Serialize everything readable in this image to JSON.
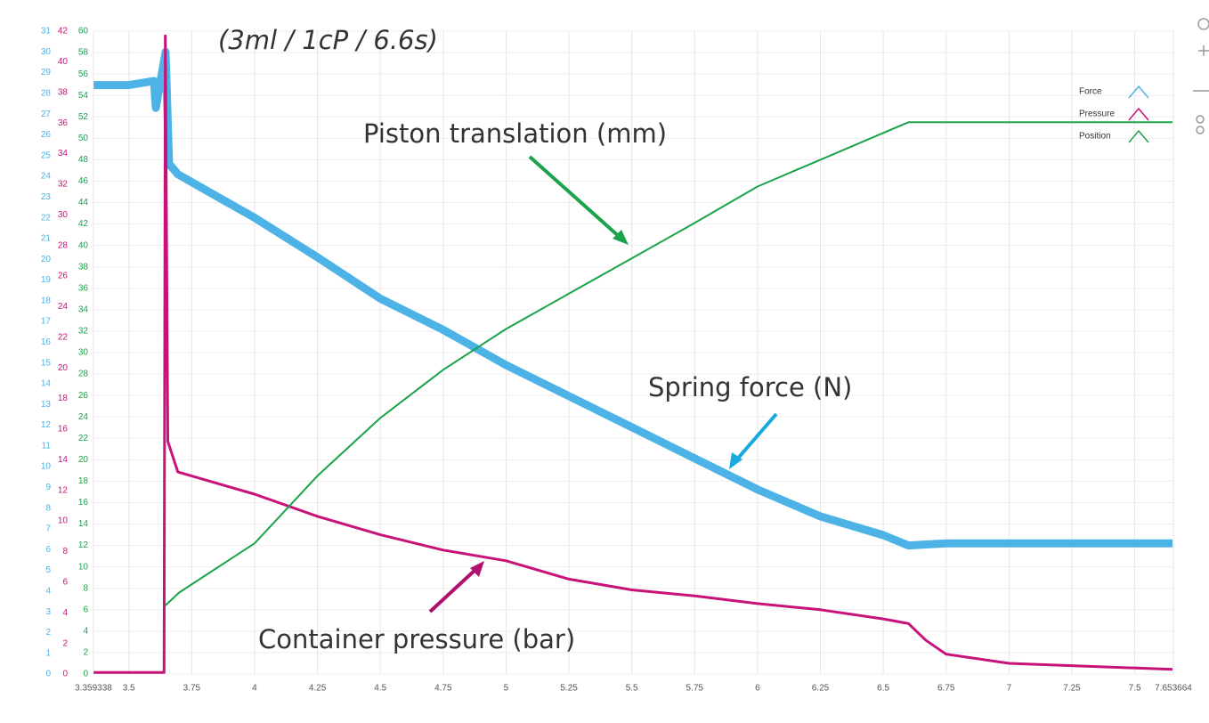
{
  "chart_data": {
    "type": "line",
    "subtitle": "(3ml / 1cP / 6.6s)",
    "annotations": [
      "Piston translation (mm)",
      "Spring force (N)",
      "Container pressure (bar)"
    ],
    "xlim": [
      3.359338,
      7.653664
    ],
    "xticks": [
      3.359338,
      3.5,
      3.75,
      4,
      4.25,
      4.5,
      4.75,
      5,
      5.25,
      5.5,
      5.75,
      6,
      6.25,
      6.5,
      6.75,
      7,
      7.25,
      7.5,
      7.653664
    ],
    "ylim": [
      0,
      31
    ],
    "yticks": [
      0,
      1,
      2,
      3,
      4,
      5,
      6,
      7,
      8,
      9,
      10,
      11,
      12,
      13,
      14,
      15,
      16,
      17,
      18,
      19,
      20,
      21,
      22,
      23,
      24,
      25,
      26,
      27,
      28,
      29,
      30,
      31
    ],
    "y2lim": [
      0,
      42
    ],
    "y2ticks": [
      0,
      2,
      4,
      6,
      8,
      10,
      12,
      14,
      16,
      18,
      20,
      22,
      24,
      26,
      28,
      30,
      32,
      34,
      36,
      38,
      40,
      42
    ],
    "y3lim": [
      0,
      60
    ],
    "y3ticks": [
      0,
      2,
      4,
      6,
      8,
      10,
      12,
      14,
      16,
      18,
      20,
      22,
      24,
      26,
      28,
      30,
      32,
      34,
      36,
      38,
      40,
      42,
      44,
      46,
      48,
      50,
      52,
      54,
      56,
      58,
      60
    ],
    "grid": true,
    "legend": "top-right",
    "series": [
      {
        "name": "Force",
        "color": "#4db3e6",
        "axis": "y",
        "x": [
          3.36,
          3.5,
          3.6,
          3.607,
          3.646,
          3.66,
          3.695,
          4,
          4.25,
          4.5,
          4.75,
          5,
          5.25,
          5.5,
          5.75,
          6,
          6.25,
          6.5,
          6.6,
          6.75,
          7.65
        ],
        "values": [
          28.4,
          28.4,
          28.6,
          27.3,
          30,
          24.6,
          24.1,
          22.0,
          20.1,
          18.1,
          16.6,
          14.9,
          13.4,
          11.9,
          10.4,
          8.9,
          7.6,
          6.7,
          6.2,
          6.3,
          6.3
        ]
      },
      {
        "name": "Pressure",
        "color": "#c8127a",
        "axis": "y2",
        "x": [
          3.36,
          3.5,
          3.64,
          3.645,
          3.655,
          3.695,
          4,
          4.25,
          4.5,
          4.75,
          5,
          5.25,
          5.5,
          5.75,
          6,
          6.25,
          6.5,
          6.6,
          6.67,
          6.75,
          7,
          7.65
        ],
        "values": [
          0.1,
          0.1,
          0.1,
          41.7,
          15.2,
          13.2,
          11.75,
          10.3,
          9.1,
          8.1,
          7.4,
          6.2,
          5.5,
          5.1,
          4.6,
          4.2,
          3.6,
          3.3,
          2.2,
          1.3,
          0.7,
          0.3
        ]
      },
      {
        "name": "Position",
        "color": "#1aa34a",
        "axis": "y3",
        "x": [
          3.645,
          3.7,
          4,
          4.25,
          4.5,
          4.75,
          5,
          5.25,
          5.5,
          5.75,
          6,
          6.25,
          6.5,
          6.6,
          7.65
        ],
        "values": [
          6.4,
          7.6,
          12.2,
          18.5,
          23.9,
          28.4,
          32.2,
          35.5,
          38.8,
          42.1,
          45.5,
          48.0,
          50.5,
          51.5,
          51.5
        ]
      }
    ]
  }
}
